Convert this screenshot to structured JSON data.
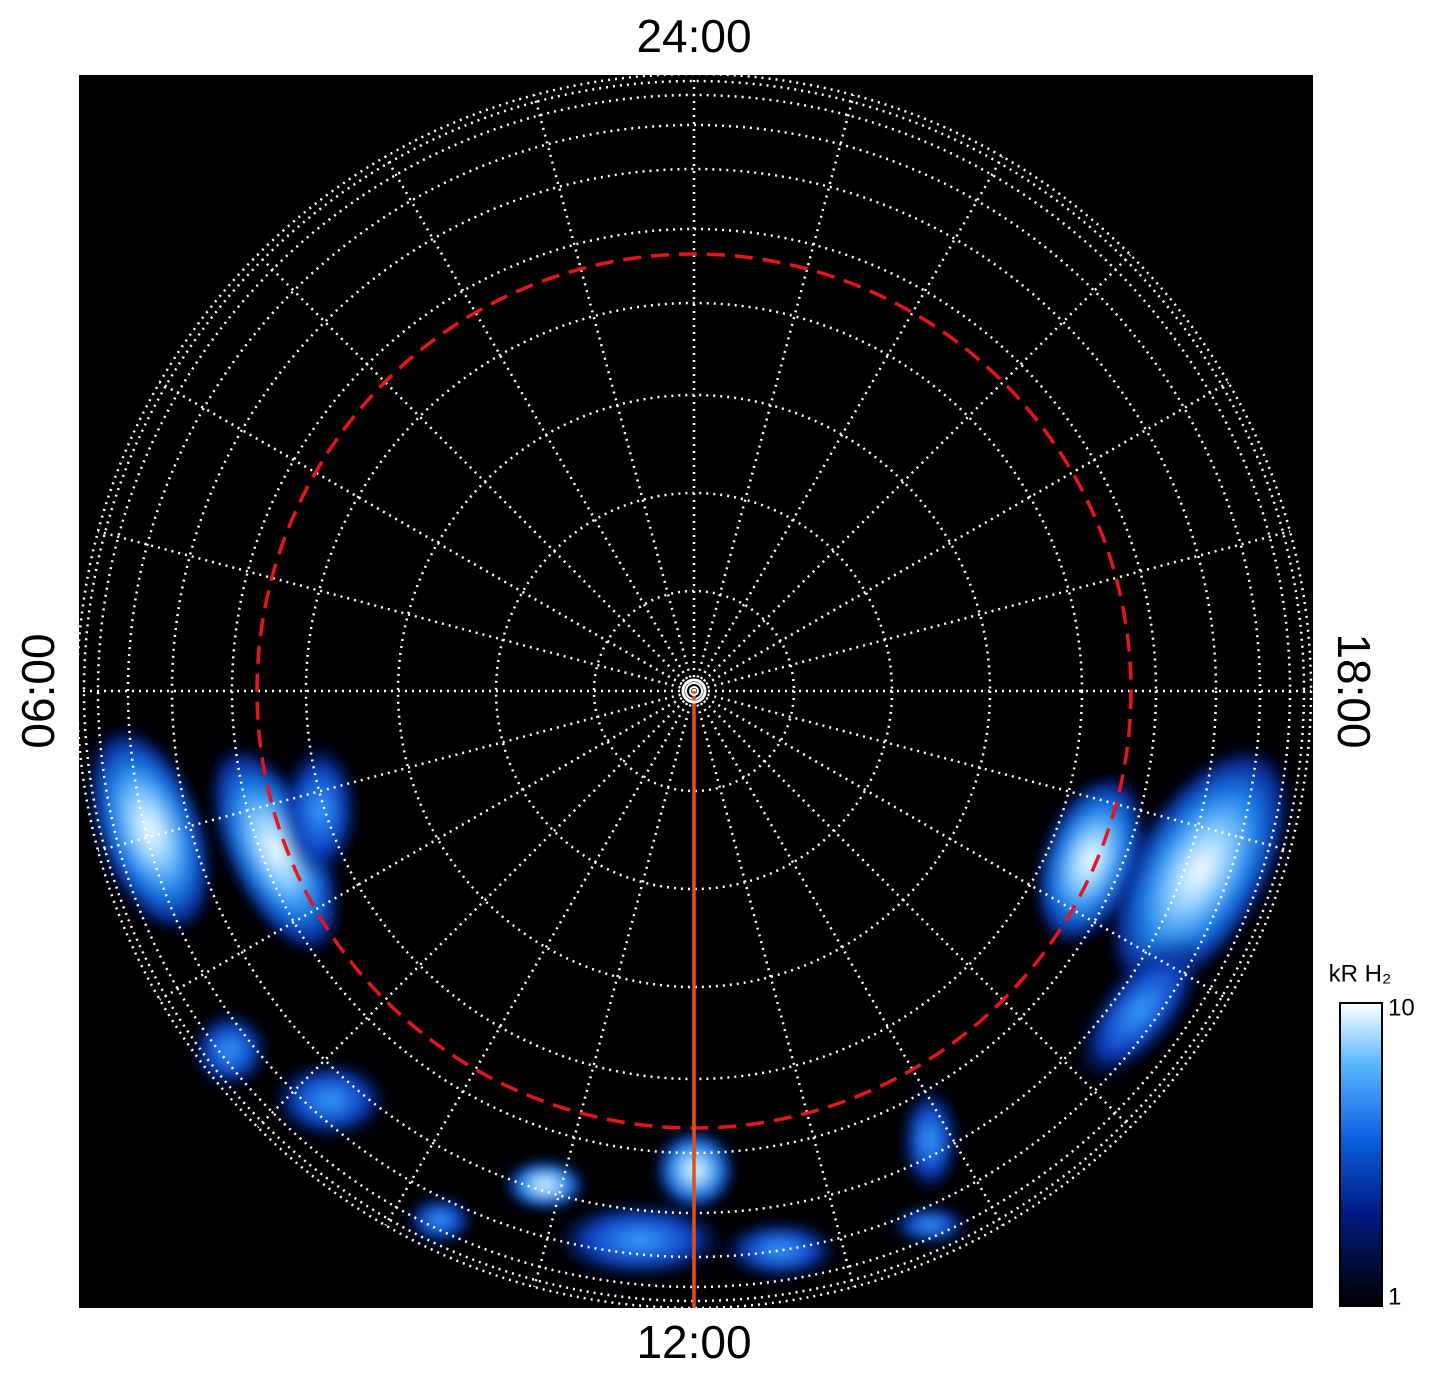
{
  "chart_data": {
    "type": "polar-map",
    "labels": {
      "top": "24:00",
      "bottom": "12:00",
      "left": "06:00",
      "right": "18:00"
    },
    "colorbar": {
      "label": "kR H₂",
      "clim": [
        1,
        10
      ],
      "ticks": [
        1,
        10
      ],
      "log": true
    }
  }
}
